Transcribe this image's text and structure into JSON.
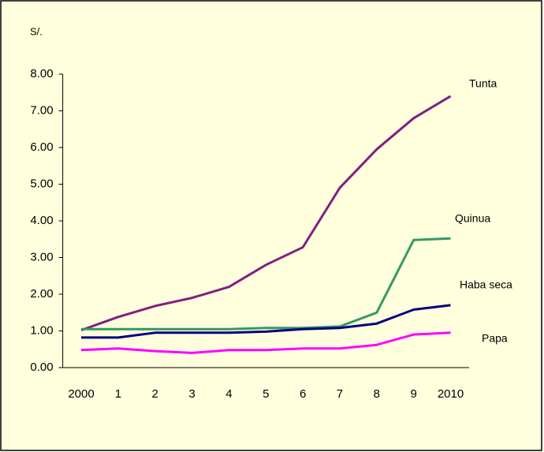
{
  "chart_data": {
    "type": "line",
    "ylabel": "S/.",
    "categories": [
      "2000",
      "1",
      "2",
      "3",
      "4",
      "5",
      "6",
      "7",
      "8",
      "9",
      "2010"
    ],
    "series": [
      {
        "name": "Tunta",
        "color": "#80207f",
        "values": [
          1.02,
          1.38,
          1.68,
          1.9,
          2.2,
          2.8,
          3.28,
          4.9,
          5.95,
          6.8,
          7.4
        ]
      },
      {
        "name": "Quinua",
        "color": "#339966",
        "values": [
          1.05,
          1.05,
          1.05,
          1.05,
          1.05,
          1.08,
          1.08,
          1.12,
          1.5,
          3.48,
          3.52
        ]
      },
      {
        "name": "Haba seca",
        "color": "#000080",
        "values": [
          0.82,
          0.82,
          0.95,
          0.95,
          0.95,
          0.98,
          1.05,
          1.08,
          1.2,
          1.58,
          1.7
        ]
      },
      {
        "name": "Papa",
        "color": "#ff00ff",
        "values": [
          0.48,
          0.52,
          0.45,
          0.4,
          0.48,
          0.48,
          0.52,
          0.52,
          0.62,
          0.9,
          0.95
        ]
      }
    ],
    "ylim": [
      0,
      8
    ],
    "yticks": [
      {
        "value": 0,
        "label": "0.00"
      },
      {
        "value": 1,
        "label": "1.00"
      },
      {
        "value": 2,
        "label": "2.00"
      },
      {
        "value": 3,
        "label": "3.00"
      },
      {
        "value": 4,
        "label": "4.00"
      },
      {
        "value": 5,
        "label": "5.00"
      },
      {
        "value": 6,
        "label": "6.00"
      },
      {
        "value": 7,
        "label": "7.00"
      },
      {
        "value": 8,
        "label": "8.00"
      }
    ],
    "grid": false
  }
}
